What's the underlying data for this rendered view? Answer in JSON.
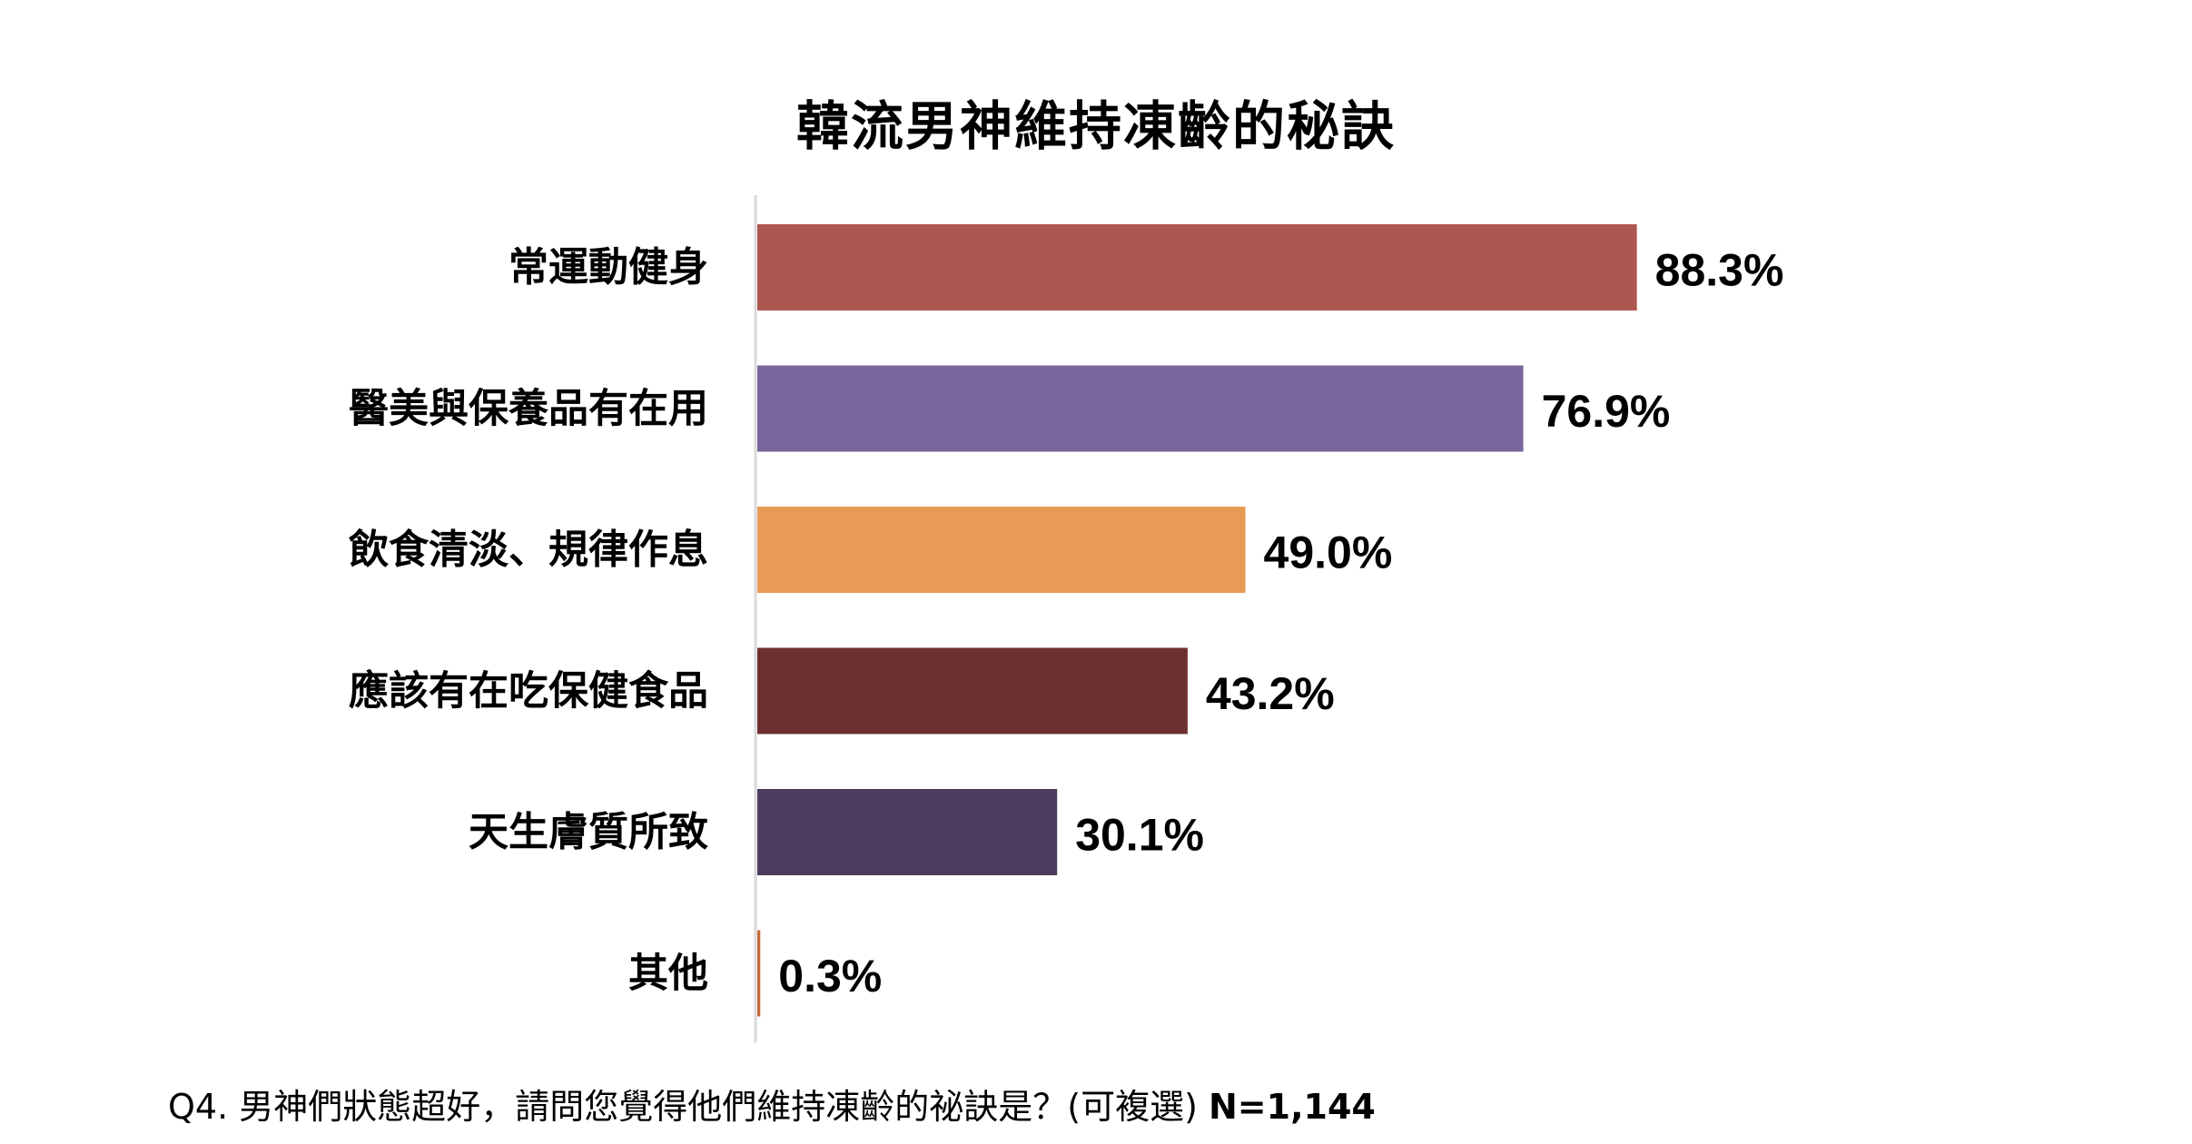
{
  "chart_data": {
    "type": "bar",
    "orientation": "horizontal",
    "title": "韓流男神維持凍齡的秘訣",
    "categories": [
      "常運動健身",
      "醫美與保養品有在用",
      "飲食清淡、規律作息",
      "應該有在吃保健食品",
      "天生膚質所致",
      "其他"
    ],
    "values": [
      88.3,
      76.9,
      49.0,
      43.2,
      30.1,
      0.3
    ],
    "value_labels": [
      "88.3%",
      "76.9%",
      "49.0%",
      "43.2%",
      "30.1%",
      "0.3%"
    ],
    "colors": [
      "#ad5751",
      "#7b659d",
      "#e89b55",
      "#6e302f",
      "#4b3d60",
      "#c46a3d"
    ],
    "xlim": [
      0,
      100
    ],
    "unit": "%",
    "grid": false,
    "legend": "none",
    "xlabel": "",
    "ylabel": ""
  },
  "footnote": {
    "question": "Q4. 男神們狀態超好，請問您覺得他們維持凍齡的祕訣是？(可複選)",
    "sample": "N=1,144"
  }
}
